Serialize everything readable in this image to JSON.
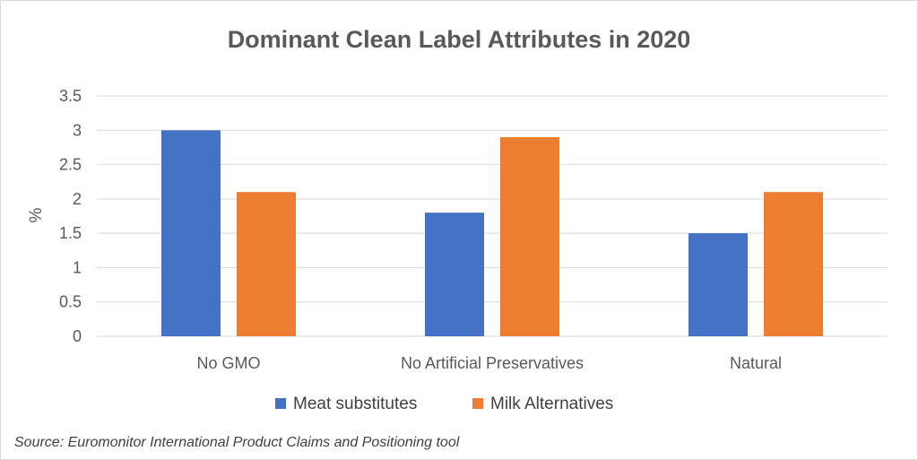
{
  "chart_data": {
    "type": "bar",
    "title": "Dominant Clean Label Attributes in 2020",
    "xlabel": "",
    "ylabel": "%",
    "ylim": [
      0,
      3.5
    ],
    "yticks": [
      0,
      0.5,
      1,
      1.5,
      2,
      2.5,
      3,
      3.5
    ],
    "ytick_labels": [
      "0",
      "0.5",
      "1",
      "1.5",
      "2",
      "2.5",
      "3",
      "3.5"
    ],
    "grid": true,
    "legend_position": "bottom",
    "categories": [
      "No GMO",
      "No Artificial Preservatives",
      "Natural"
    ],
    "series": [
      {
        "name": "Meat substitutes",
        "color": "#4472C4",
        "values": [
          3,
          1.8,
          1.5
        ]
      },
      {
        "name": "Milk Alternatives",
        "color": "#ED7D31",
        "values": [
          2.1,
          2.9,
          2.1
        ]
      }
    ]
  },
  "source_note": "Source: Euromonitor International Product Claims and Positioning tool"
}
